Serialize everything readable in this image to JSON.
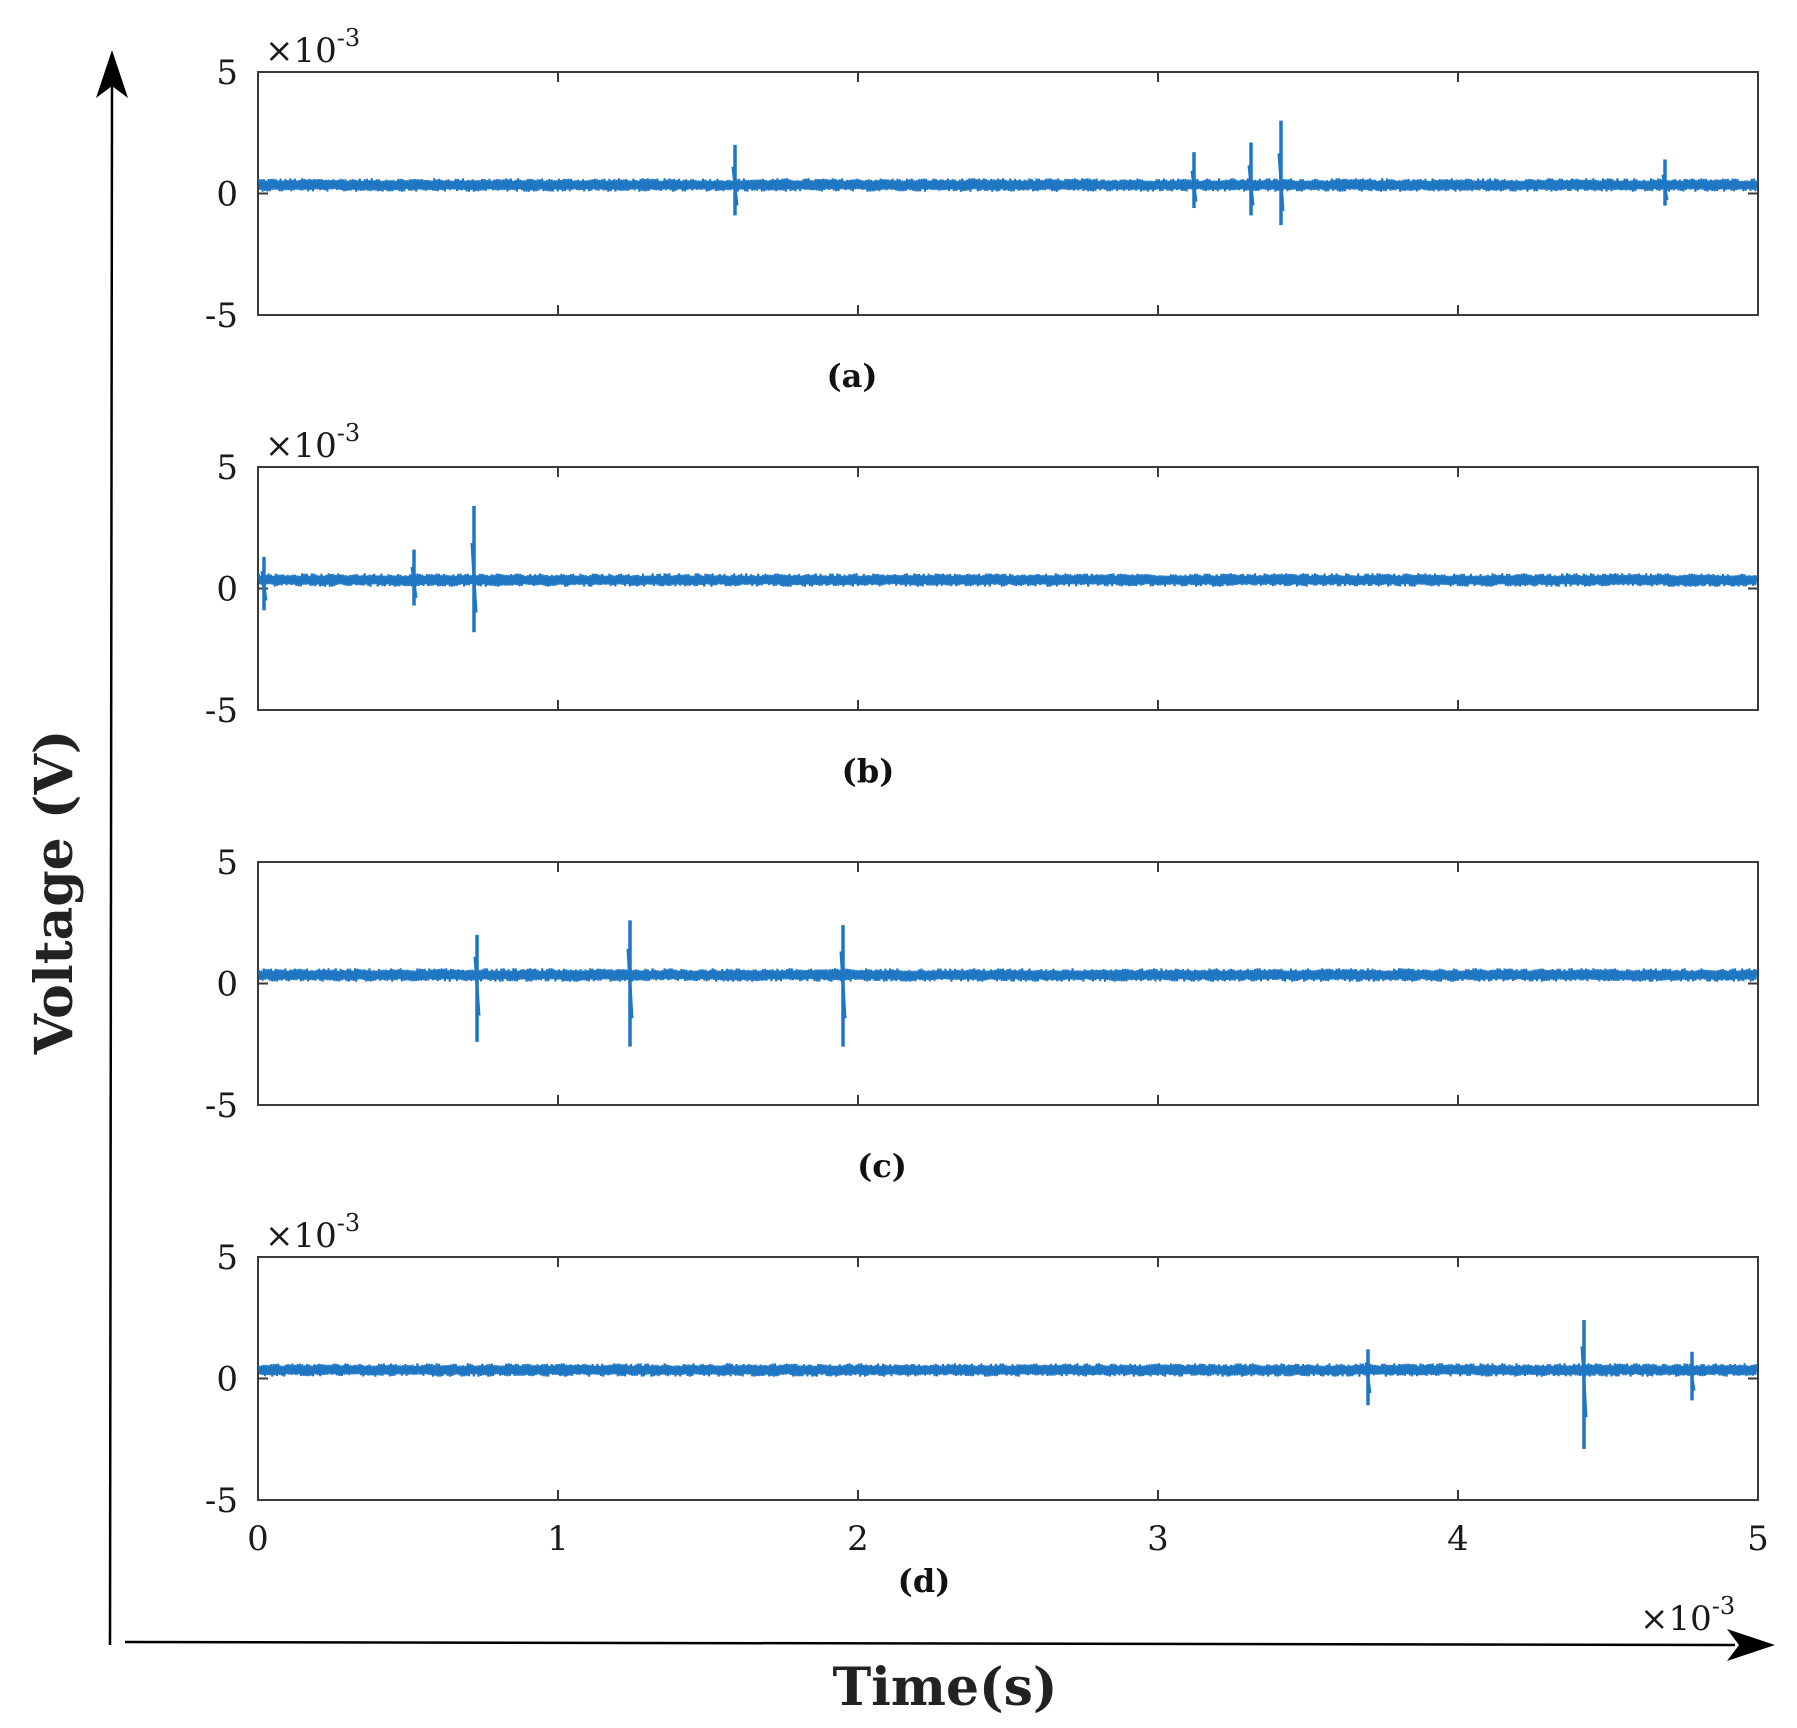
{
  "chart_data": [
    {
      "type": "line",
      "caption": "(a)",
      "multiplier": {
        "base": "×10",
        "exp": "-3"
      },
      "ylim": [
        -5,
        5
      ],
      "yticks": [
        "5",
        "0",
        "-5"
      ],
      "xlim": [
        0,
        5
      ],
      "baseline": 0.35,
      "noise_band": 0.55,
      "color": "#1f77c4",
      "spikes": [
        {
          "t": 1.59,
          "max": 2.0,
          "min": -0.9
        },
        {
          "t": 3.12,
          "max": 1.7,
          "min": -0.6
        },
        {
          "t": 3.31,
          "max": 2.1,
          "min": -0.9
        },
        {
          "t": 3.41,
          "max": 3.0,
          "min": -1.3
        },
        {
          "t": 4.69,
          "max": 1.4,
          "min": -0.5
        }
      ]
    },
    {
      "type": "line",
      "caption": "(b)",
      "multiplier": {
        "base": "×10",
        "exp": "-3"
      },
      "ylim": [
        -5,
        5
      ],
      "yticks": [
        "5",
        "0",
        "-5"
      ],
      "xlim": [
        0,
        5
      ],
      "baseline": 0.35,
      "noise_band": 0.55,
      "color": "#1f77c4",
      "spikes": [
        {
          "t": 0.02,
          "max": 1.3,
          "min": -0.9
        },
        {
          "t": 0.52,
          "max": 1.6,
          "min": -0.7
        },
        {
          "t": 0.72,
          "max": 3.4,
          "min": -1.8
        }
      ]
    },
    {
      "type": "line",
      "caption": "(c)",
      "multiplier": null,
      "ylim": [
        -5,
        5
      ],
      "yticks": [
        "5",
        "0",
        "-5"
      ],
      "xlim": [
        0,
        5
      ],
      "baseline": 0.35,
      "noise_band": 0.55,
      "color": "#1f77c4",
      "spikes": [
        {
          "t": 0.73,
          "max": 2.0,
          "min": -2.4
        },
        {
          "t": 1.24,
          "max": 2.6,
          "min": -2.6
        },
        {
          "t": 1.95,
          "max": 2.4,
          "min": -2.6
        }
      ]
    },
    {
      "type": "line",
      "caption": "(d)",
      "multiplier": {
        "base": "×10",
        "exp": "-3"
      },
      "ylim": [
        -5,
        5
      ],
      "yticks": [
        "5",
        "0",
        "-5"
      ],
      "xlim": [
        0,
        5
      ],
      "xticks": [
        "0",
        "1",
        "2",
        "3",
        "4",
        "5"
      ],
      "x_multiplier": {
        "base": "×10",
        "exp": "-3"
      },
      "baseline": 0.35,
      "noise_band": 0.55,
      "color": "#1f77c4",
      "spikes": [
        {
          "t": 3.7,
          "max": 1.2,
          "min": -1.1
        },
        {
          "t": 4.42,
          "max": 2.4,
          "min": -2.9
        },
        {
          "t": 4.78,
          "max": 1.1,
          "min": -0.9
        }
      ]
    }
  ],
  "ylabel": "Voltage (V)",
  "xlabel": "Time(s)"
}
